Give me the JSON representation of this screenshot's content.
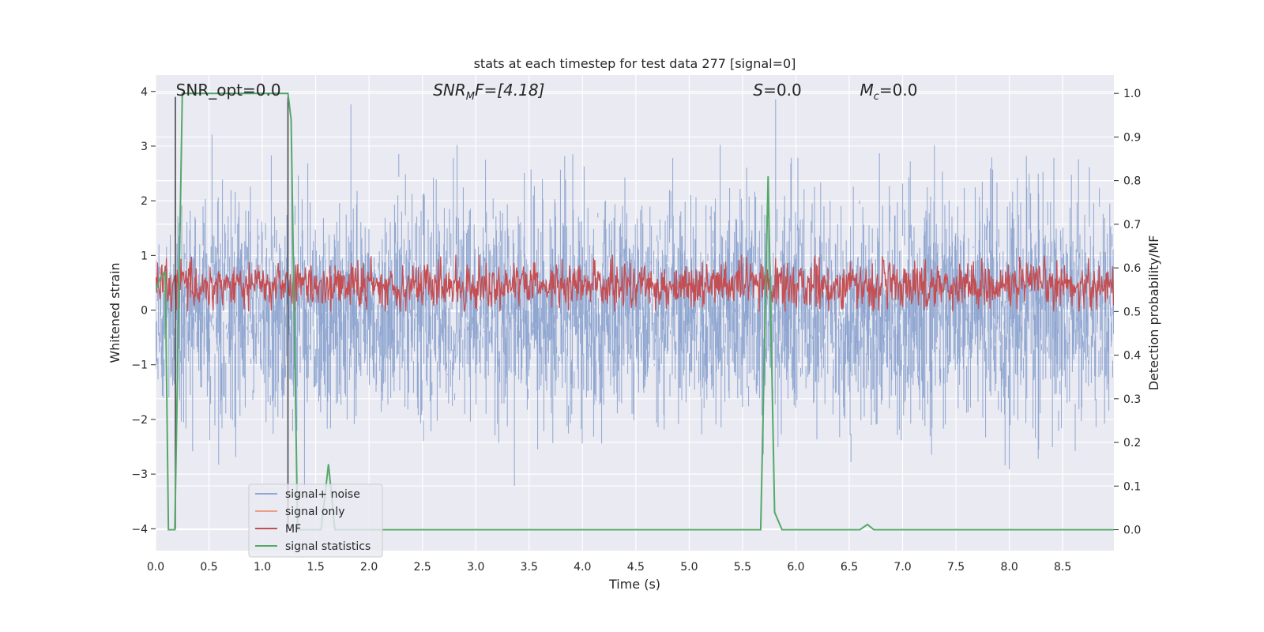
{
  "chart_data": {
    "type": "line",
    "title": "stats at each timestep for test data 277 [signal=0]",
    "xlabel": "Time (s)",
    "ylabel_left": "Whitened strain",
    "ylabel_right": "Detection probability/MF",
    "xlim": [
      0.0,
      8.98
    ],
    "ylim_left": [
      -4.4,
      4.3
    ],
    "ylim_right": [
      -0.048,
      1.042
    ],
    "xticks": [
      "0.0",
      "0.5",
      "1.0",
      "1.5",
      "2.0",
      "2.5",
      "3.0",
      "3.5",
      "4.0",
      "4.5",
      "5.0",
      "5.5",
      "6.0",
      "6.5",
      "7.0",
      "7.5",
      "8.0",
      "8.5"
    ],
    "yticks_left": [
      "4",
      "3",
      "2",
      "1",
      "0",
      "−1",
      "−2",
      "−3",
      "−4"
    ],
    "yticks_right": [
      "1.0",
      "0.9",
      "0.8",
      "0.7",
      "0.6",
      "0.5",
      "0.4",
      "0.3",
      "0.2",
      "0.1",
      "0.0"
    ],
    "grid": true,
    "legend_position": "lower-left",
    "annotations": {
      "snr_opt": "SNR_opt=0.0",
      "snr_mf_pre": "SNR",
      "snr_mf_sub": "M",
      "snr_mf_post": "F=[4.18]",
      "s_pre": "S",
      "s_post": "=0.0",
      "mc_pre": "M",
      "mc_sub": "c",
      "mc_post": "=0.0"
    },
    "vlines_x": [
      0.185,
      1.24
    ],
    "series": [
      {
        "name": "signal+ noise",
        "color": "#8fa6d0",
        "axis": "left",
        "kind": "noise",
        "amplitude_range": [
          -4.0,
          3.9
        ]
      },
      {
        "name": "signal only",
        "color": "#e8a088",
        "axis": "left",
        "kind": "empty"
      },
      {
        "name": "MF",
        "color": "#c44e52",
        "axis": "right",
        "kind": "mf",
        "range": [
          0.5,
          0.62
        ]
      },
      {
        "name": "signal statistics",
        "color": "#55a868",
        "axis": "right",
        "kind": "line",
        "x": [
          0.0,
          0.05,
          0.09,
          0.12,
          0.18,
          0.25,
          1.24,
          1.27,
          1.33,
          1.55,
          1.62,
          1.68,
          5.67,
          5.74,
          5.8,
          5.87,
          6.6,
          6.67,
          6.73,
          8.98
        ],
        "y": [
          0.55,
          0.58,
          0.59,
          0.0,
          0.0,
          1.0,
          1.0,
          0.94,
          0.0,
          0.0,
          0.15,
          0.0,
          0.0,
          0.81,
          0.04,
          0.0,
          0.0,
          0.012,
          0.0,
          0.0
        ]
      }
    ]
  }
}
